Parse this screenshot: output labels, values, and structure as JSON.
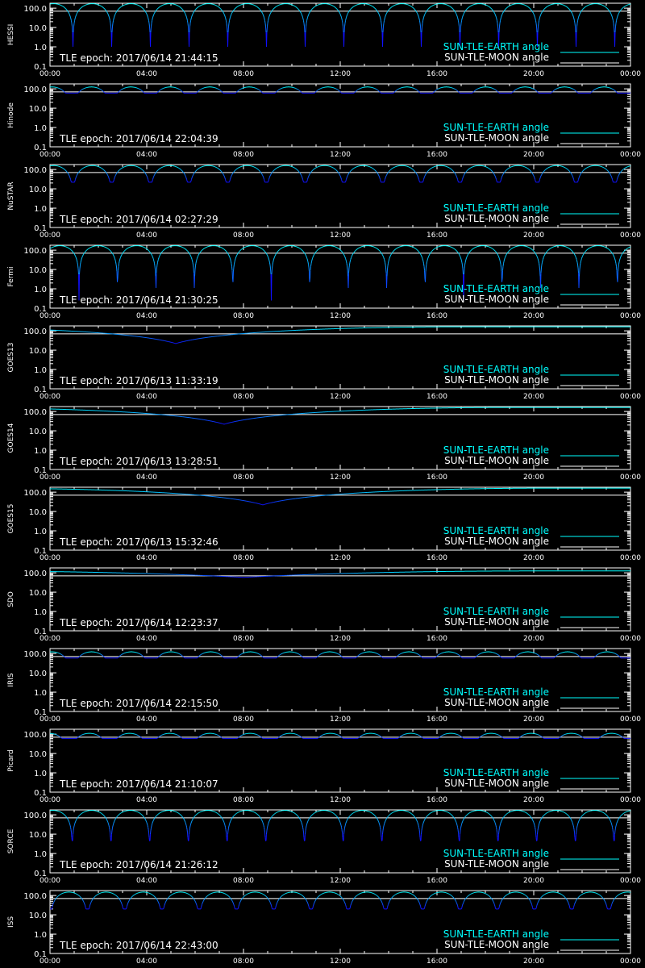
{
  "chart_data": {
    "type": "line",
    "x_ticks": [
      "00:00",
      "04:00",
      "08:00",
      "12:00",
      "16:00",
      "20:00",
      "00:00"
    ],
    "y_ticks": [
      "100.0",
      "10.0",
      "1.0",
      "0.1"
    ],
    "ylim": [
      0.1,
      180
    ],
    "yscale": "log",
    "xlim_hours": [
      0,
      24
    ],
    "legend": {
      "position": "bottom-right",
      "earth_label": "SUN-TLE-EARTH angle",
      "moon_label": "SUN-TLE-MOON angle"
    },
    "colors": {
      "background": "#000000",
      "axes": "#ffffff",
      "earth_high": "#00ffff",
      "earth_low": "#1010ff",
      "moon": "#ffffff",
      "earth_legend": "#00ffff",
      "moon_legend": "#ffffff"
    },
    "panels": [
      {
        "name": "HESSI",
        "epoch": "TLE epoch: 2017/06/14 21:44:15",
        "kind": "leo",
        "period_h": 1.6,
        "phase_h": 0.95,
        "min_angle": 1.0,
        "max_angle": 170,
        "moon_angle": 70
      },
      {
        "name": "Hinode",
        "epoch": "TLE epoch: 2017/06/14 22:04:39",
        "kind": "leo",
        "period_h": 1.63,
        "phase_h": 0.9,
        "min_angle": 60,
        "max_angle": 125,
        "moon_angle": 70
      },
      {
        "name": "NuSTAR",
        "epoch": "TLE epoch: 2017/06/14 02:27:29",
        "kind": "leo",
        "period_h": 1.6,
        "phase_h": 0.95,
        "min_angle": 22,
        "max_angle": 160,
        "moon_angle": 70
      },
      {
        "name": "Fermi",
        "epoch": "TLE epoch: 2017/06/14 21:30:25",
        "kind": "leo",
        "period_h": 1.59,
        "phase_h": 1.2,
        "min_angle": 0.25,
        "max_angle": 170,
        "moon_angle": 70
      },
      {
        "name": "GOES13",
        "epoch": "TLE epoch: 2017/06/13 11:33:19",
        "kind": "geo",
        "min_at_h": 5.2,
        "min_angle": 22,
        "max_angle": 162,
        "moon_angle": 70
      },
      {
        "name": "GOES14",
        "epoch": "TLE epoch: 2017/06/13 13:28:51",
        "kind": "geo",
        "min_at_h": 7.2,
        "min_angle": 22,
        "max_angle": 162,
        "moon_angle": 70
      },
      {
        "name": "GOES15",
        "epoch": "TLE epoch: 2017/06/13 15:32:46",
        "kind": "geo",
        "min_at_h": 8.8,
        "min_angle": 22,
        "max_angle": 162,
        "moon_angle": 70
      },
      {
        "name": "SDO",
        "epoch": "TLE epoch: 2017/06/14 12:23:37",
        "kind": "geo",
        "min_at_h": 8.0,
        "min_angle": 58,
        "max_angle": 125,
        "moon_angle": 70
      },
      {
        "name": "IRIS",
        "epoch": "TLE epoch: 2017/06/14 22:15:50",
        "kind": "leo",
        "period_h": 1.64,
        "phase_h": 0.9,
        "min_angle": 58,
        "max_angle": 122,
        "moon_angle": 70
      },
      {
        "name": "Picard",
        "epoch": "TLE epoch: 2017/06/14 21:10:07",
        "kind": "leo",
        "period_h": 1.66,
        "phase_h": 0.8,
        "min_angle": 60,
        "max_angle": 110,
        "moon_angle": 70
      },
      {
        "name": "SORCE",
        "epoch": "TLE epoch: 2017/06/14 21:26:12",
        "kind": "leo",
        "period_h": 1.6,
        "phase_h": 0.92,
        "min_angle": 4.5,
        "max_angle": 170,
        "moon_angle": 70
      },
      {
        "name": "ISS",
        "epoch": "TLE epoch: 2017/06/14 22:43:00",
        "kind": "leo",
        "period_h": 1.54,
        "phase_h": 1.55,
        "min_angle": 20,
        "max_angle": 150,
        "moon_angle": 70
      }
    ]
  }
}
